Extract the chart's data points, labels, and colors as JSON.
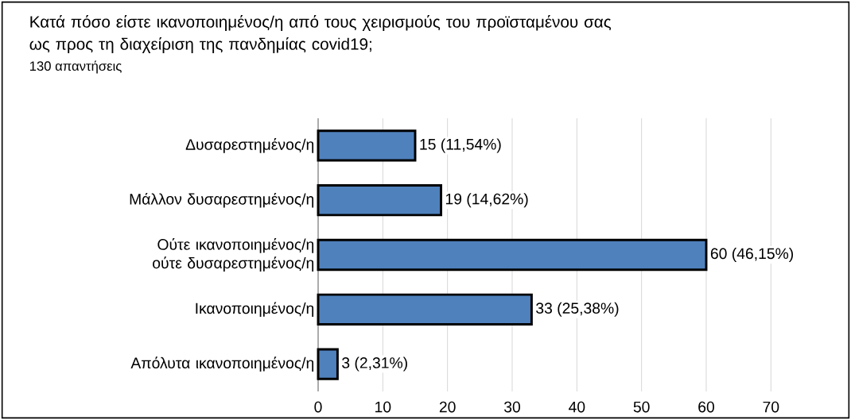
{
  "chart_data": {
    "type": "bar",
    "orientation": "horizontal",
    "title": "Κατά πόσο είστε ικανοποιημένος/η από τους χειρισμούς του προϊσταμένου σας ως προς τη διαχείριση της πανδημίας covid19;",
    "subtitle": "130 απαντήσεις",
    "categories": [
      "Δυσαρεστημένος/η",
      "Μάλλον δυσαρεστημένος/η",
      "Ούτε ικανοποιημένος/η ούτε δυσαρεστημένος/η",
      "Ικανοποιημένος/η",
      "Απόλυτα ικανοποιημένος/η"
    ],
    "values": [
      15,
      19,
      60,
      33,
      3
    ],
    "value_labels": [
      "15 (11,54%)",
      "19 (14,62%)",
      "60 (46,15%)",
      "33 (25,38%)",
      "3 (2,31%)"
    ],
    "color": "#4f81bd",
    "xlim": [
      0,
      70
    ],
    "xticks": [
      0,
      10,
      20,
      30,
      40,
      50,
      60,
      70
    ],
    "grid": "x"
  }
}
